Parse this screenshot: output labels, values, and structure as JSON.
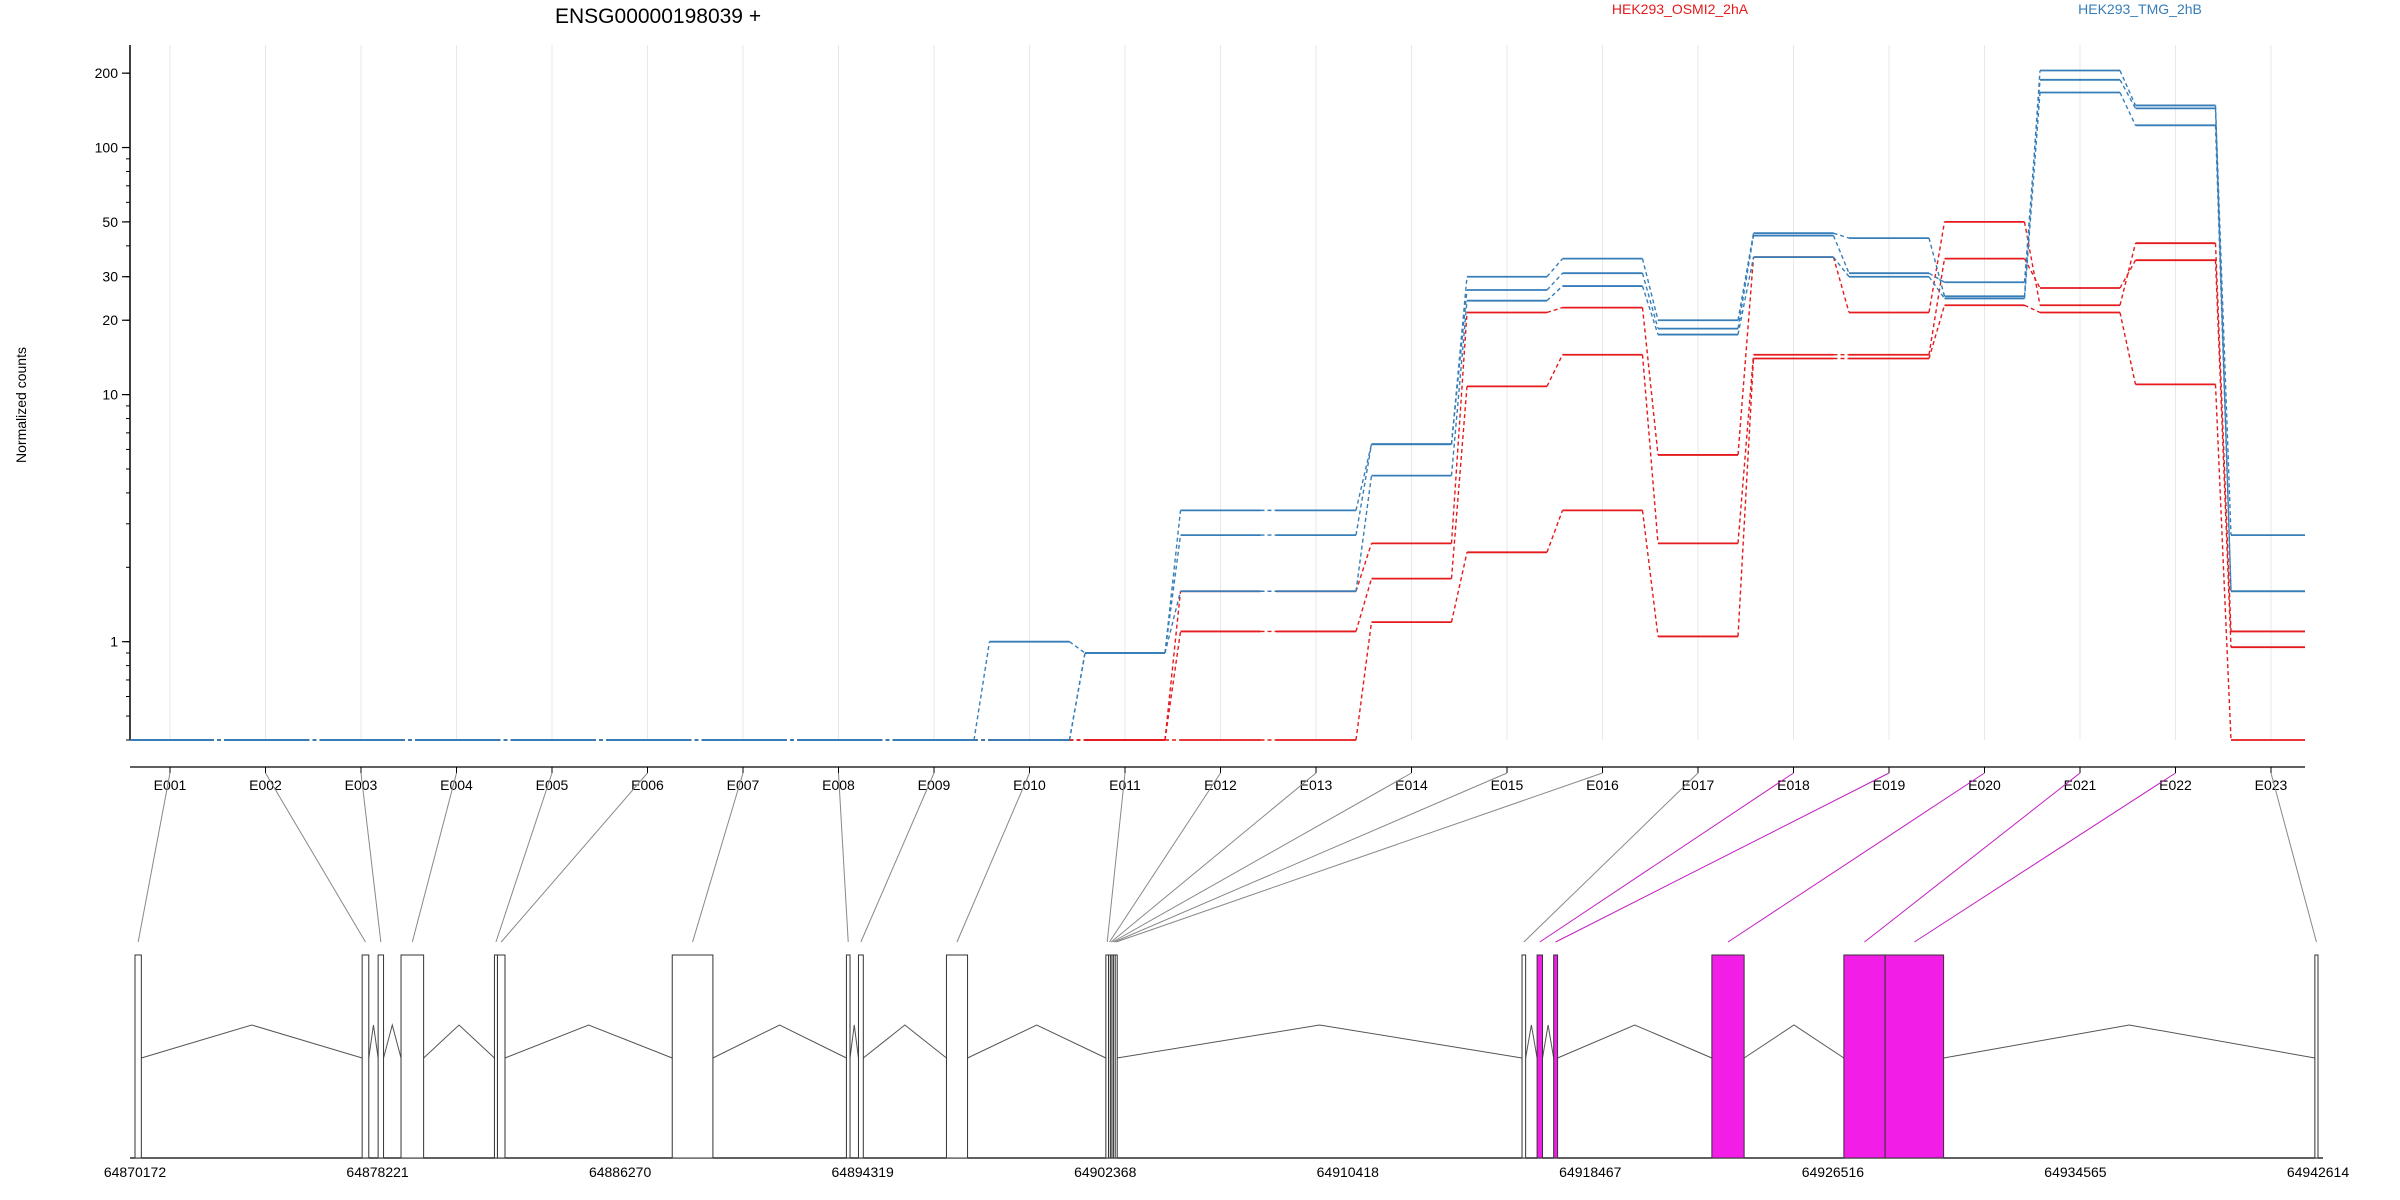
{
  "figure": {
    "title": "ENSG00000198039 +",
    "ylabel": "Normalized counts"
  },
  "colors": {
    "HEK293_OSMI2_2hA": "#e41a1c",
    "HEK293_TMG_2hB": "#377eb8",
    "grid": "#e8e8e8",
    "gene_model": "#555555",
    "highlight_exon": "#f21de6",
    "link_gray": "#888888",
    "link_magenta": "#c21ec0"
  },
  "chart_data": {
    "type": "line",
    "yscale": "log",
    "ylim": [
      0.4,
      260
    ],
    "yticks": [
      1,
      10,
      20,
      30,
      50,
      100,
      200
    ],
    "categories": [
      "E001",
      "E002",
      "E003",
      "E004",
      "E005",
      "E006",
      "E007",
      "E008",
      "E009",
      "E010",
      "E011",
      "E012",
      "E013",
      "E014",
      "E015",
      "E016",
      "E017",
      "E018",
      "E019",
      "E020",
      "E021",
      "E022",
      "E023"
    ],
    "series": [
      {
        "name": "HEK293_OSMI2_2hA",
        "group": "HEK293_OSMI2_2hA",
        "values": [
          0.4,
          0.4,
          0.4,
          0.4,
          0.4,
          0.4,
          0.4,
          0.4,
          0.4,
          0.4,
          0.4,
          1.6,
          1.6,
          2.5,
          21.5,
          22.5,
          5.7,
          36,
          21.5,
          50,
          23,
          41,
          1.1
        ]
      },
      {
        "name": "HEK293_OSMI2_2hA",
        "group": "HEK293_OSMI2_2hA",
        "values": [
          0.4,
          0.4,
          0.4,
          0.4,
          0.4,
          0.4,
          0.4,
          0.4,
          0.4,
          0.4,
          0.4,
          1.1,
          1.1,
          1.8,
          10.8,
          14.5,
          2.5,
          14.5,
          14.5,
          35.5,
          27,
          35,
          0.95
        ]
      },
      {
        "name": "HEK293_OSMI2_2hA",
        "group": "HEK293_OSMI2_2hA",
        "values": [
          0.4,
          0.4,
          0.4,
          0.4,
          0.4,
          0.4,
          0.4,
          0.4,
          0.4,
          0.4,
          0.4,
          0.4,
          0.4,
          1.2,
          2.3,
          3.4,
          1.05,
          14,
          14,
          23,
          21.5,
          11,
          0.4
        ]
      },
      {
        "name": "HEK293_TMG_2hB",
        "group": "HEK293_TMG_2hB",
        "values": [
          0.4,
          0.4,
          0.4,
          0.4,
          0.4,
          0.4,
          0.4,
          0.4,
          0.4,
          0.4,
          0.9,
          3.4,
          3.4,
          6.3,
          30,
          35.5,
          20,
          45,
          43,
          25,
          205,
          148,
          2.7
        ]
      },
      {
        "name": "HEK293_TMG_2hB",
        "group": "HEK293_TMG_2hB",
        "values": [
          0.4,
          0.4,
          0.4,
          0.4,
          0.4,
          0.4,
          0.4,
          0.4,
          0.4,
          1.0,
          0.9,
          2.7,
          2.7,
          6.3,
          26.5,
          31,
          18.5,
          44,
          31,
          28.5,
          188,
          144,
          1.6
        ]
      },
      {
        "name": "HEK293_TMG_2hB",
        "group": "HEK293_TMG_2hB",
        "values": [
          0.4,
          0.4,
          0.4,
          0.4,
          0.4,
          0.4,
          0.4,
          0.4,
          0.4,
          0.4,
          0.9,
          1.6,
          1.6,
          4.7,
          24,
          27.5,
          17.5,
          36,
          30,
          24.5,
          167,
          123,
          1.6
        ]
      }
    ],
    "legend": [
      "HEK293_OSMI2_2hA",
      "HEK293_TMG_2hB"
    ],
    "legend_placement": "top",
    "grid": true
  },
  "gene_model": {
    "coordinate_ticks": [
      "64870172",
      "64878221",
      "64886270",
      "64894319",
      "64902368",
      "64910418",
      "64918467",
      "64926516",
      "64934565",
      "64942614"
    ],
    "coord_min": 64870172,
    "coord_max": 64942614,
    "exons": [
      {
        "id": "E001",
        "start": 64870172,
        "end": 64870382,
        "highlight": false
      },
      {
        "id": "E002",
        "start": 64877710,
        "end": 64877930,
        "highlight": false
      },
      {
        "id": "E003",
        "start": 64878240,
        "end": 64878420,
        "highlight": false
      },
      {
        "id": "E004",
        "start": 64879000,
        "end": 64879750,
        "highlight": false
      },
      {
        "id": "E005",
        "start": 64882100,
        "end": 64882200,
        "highlight": false
      },
      {
        "id": "E006",
        "start": 64882200,
        "end": 64882450,
        "highlight": false
      },
      {
        "id": "E007",
        "start": 64888000,
        "end": 64889350,
        "highlight": false
      },
      {
        "id": "E008",
        "start": 64893780,
        "end": 64893900,
        "highlight": false
      },
      {
        "id": "E009",
        "start": 64894180,
        "end": 64894340,
        "highlight": false
      },
      {
        "id": "E010",
        "start": 64897100,
        "end": 64897800,
        "highlight": false
      },
      {
        "id": "E011",
        "start": 64902390,
        "end": 64902480,
        "highlight": false
      },
      {
        "id": "E012",
        "start": 64902480,
        "end": 64902540,
        "highlight": false
      },
      {
        "id": "E013",
        "start": 64902540,
        "end": 64902590,
        "highlight": false
      },
      {
        "id": "E014",
        "start": 64902590,
        "end": 64902640,
        "highlight": false
      },
      {
        "id": "E015",
        "start": 64902640,
        "end": 64902700,
        "highlight": false
      },
      {
        "id": "E016",
        "start": 64902700,
        "end": 64902760,
        "highlight": false
      },
      {
        "id": "E017",
        "start": 64916200,
        "end": 64916320,
        "highlight": false
      },
      {
        "id": "E018",
        "start": 64916700,
        "end": 64916880,
        "highlight": true
      },
      {
        "id": "E019",
        "start": 64917250,
        "end": 64917380,
        "highlight": true
      },
      {
        "id": "E020",
        "start": 64922500,
        "end": 64923570,
        "highlight": true
      },
      {
        "id": "E021",
        "start": 64926880,
        "end": 64928250,
        "highlight": true
      },
      {
        "id": "E022",
        "start": 64928250,
        "end": 64930190,
        "highlight": true
      },
      {
        "id": "E023",
        "start": 64942510,
        "end": 64942614,
        "highlight": false
      }
    ]
  }
}
